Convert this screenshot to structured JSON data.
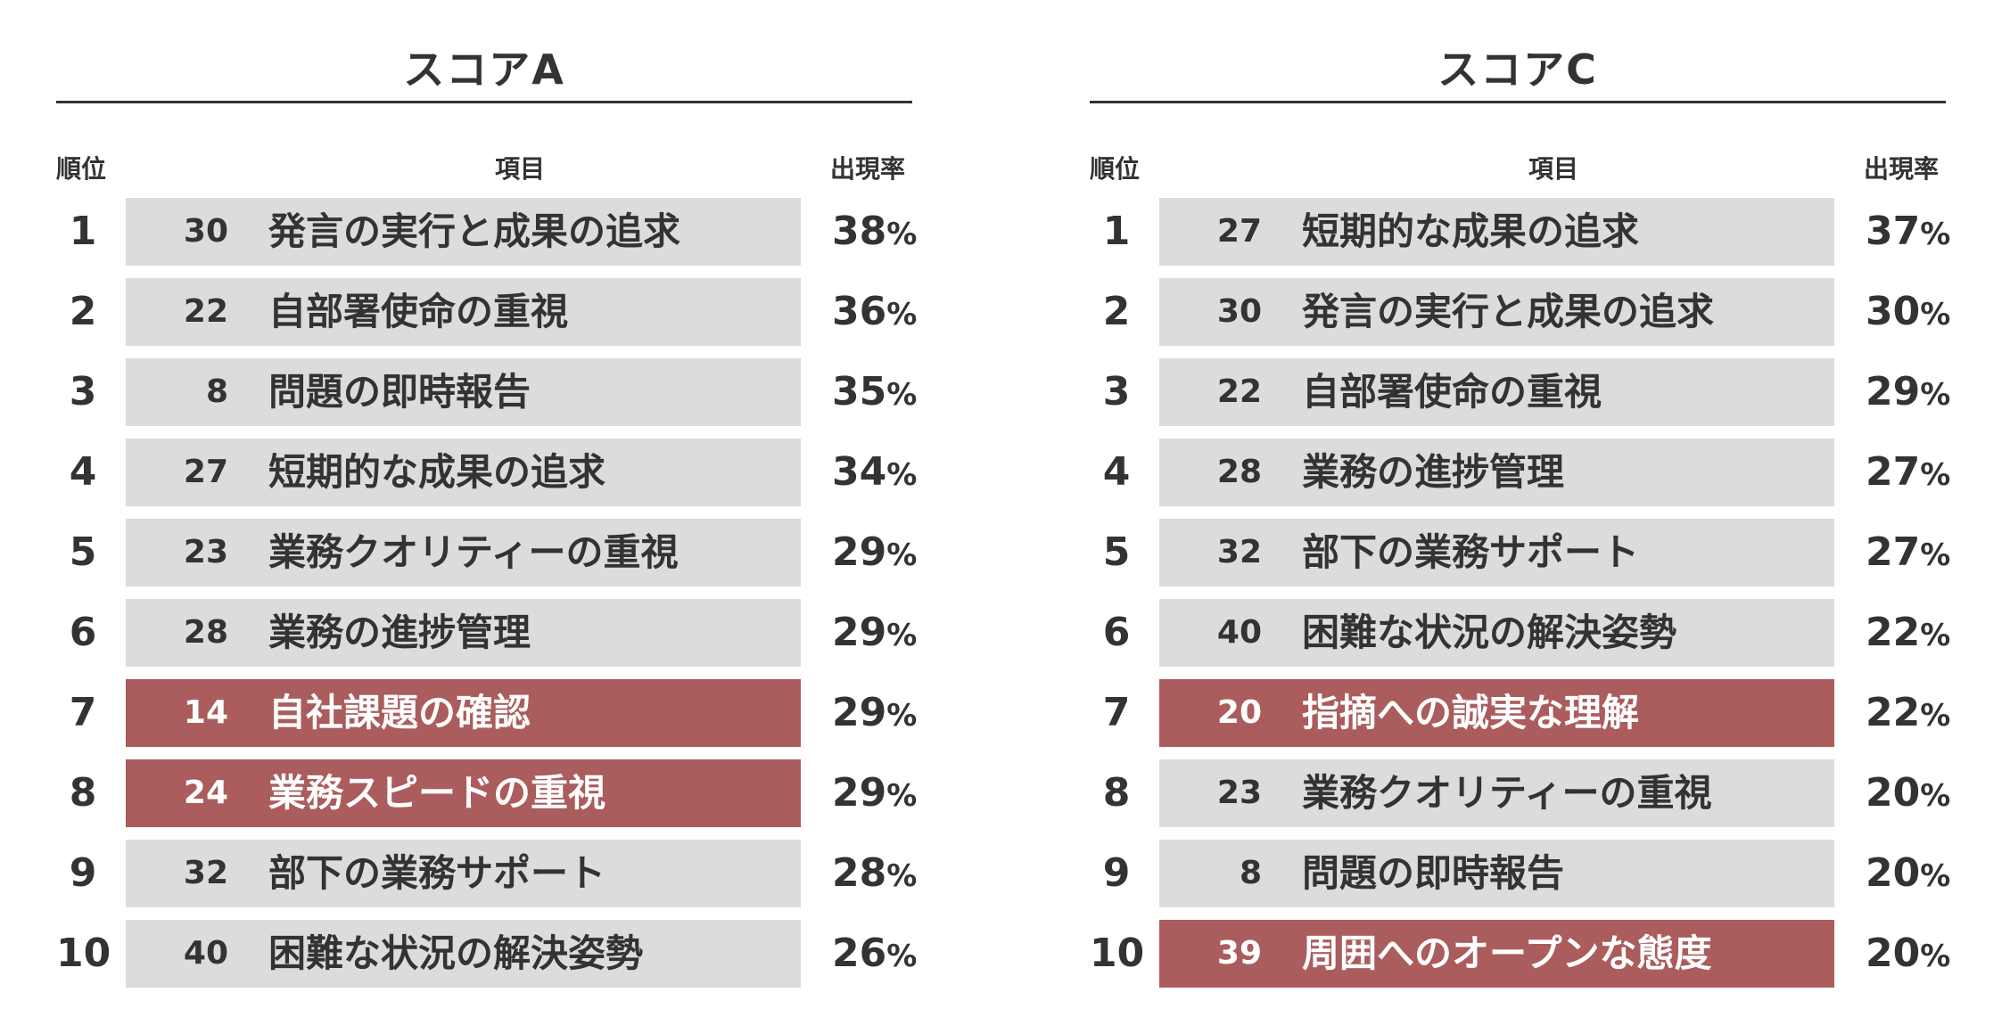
{
  "colors": {
    "bar": "#dcdcdc",
    "highlight": "#ab5c5c",
    "text": "#333333"
  },
  "panels": [
    {
      "title": "スコアA",
      "headers": {
        "rank": "順位",
        "item": "項目",
        "rate": "出現率"
      },
      "rows": [
        {
          "rank": "1",
          "num": "30",
          "label": "発言の実行と成果の追求",
          "rate": "38",
          "unit": "%",
          "highlight": false
        },
        {
          "rank": "2",
          "num": "22",
          "label": "自部署使命の重視",
          "rate": "36",
          "unit": "%",
          "highlight": false
        },
        {
          "rank": "3",
          "num": "8",
          "label": "問題の即時報告",
          "rate": "35",
          "unit": "%",
          "highlight": false
        },
        {
          "rank": "4",
          "num": "27",
          "label": "短期的な成果の追求",
          "rate": "34",
          "unit": "%",
          "highlight": false
        },
        {
          "rank": "5",
          "num": "23",
          "label": "業務クオリティーの重視",
          "rate": "29",
          "unit": "%",
          "highlight": false
        },
        {
          "rank": "6",
          "num": "28",
          "label": "業務の進捗管理",
          "rate": "29",
          "unit": "%",
          "highlight": false
        },
        {
          "rank": "7",
          "num": "14",
          "label": "自社課題の確認",
          "rate": "29",
          "unit": "%",
          "highlight": true
        },
        {
          "rank": "8",
          "num": "24",
          "label": "業務スピードの重視",
          "rate": "29",
          "unit": "%",
          "highlight": true
        },
        {
          "rank": "9",
          "num": "32",
          "label": "部下の業務サポート",
          "rate": "28",
          "unit": "%",
          "highlight": false
        },
        {
          "rank": "10",
          "num": "40",
          "label": "困難な状況の解決姿勢",
          "rate": "26",
          "unit": "%",
          "highlight": false
        }
      ]
    },
    {
      "title": "スコアC",
      "headers": {
        "rank": "順位",
        "item": "項目",
        "rate": "出現率"
      },
      "rows": [
        {
          "rank": "1",
          "num": "27",
          "label": "短期的な成果の追求",
          "rate": "37",
          "unit": "%",
          "highlight": false
        },
        {
          "rank": "2",
          "num": "30",
          "label": "発言の実行と成果の追求",
          "rate": "30",
          "unit": "%",
          "highlight": false
        },
        {
          "rank": "3",
          "num": "22",
          "label": "自部署使命の重視",
          "rate": "29",
          "unit": "%",
          "highlight": false
        },
        {
          "rank": "4",
          "num": "28",
          "label": "業務の進捗管理",
          "rate": "27",
          "unit": "%",
          "highlight": false
        },
        {
          "rank": "5",
          "num": "32",
          "label": "部下の業務サポート",
          "rate": "27",
          "unit": "%",
          "highlight": false
        },
        {
          "rank": "6",
          "num": "40",
          "label": "困難な状況の解決姿勢",
          "rate": "22",
          "unit": "%",
          "highlight": false
        },
        {
          "rank": "7",
          "num": "20",
          "label": "指摘への誠実な理解",
          "rate": "22",
          "unit": "%",
          "highlight": true
        },
        {
          "rank": "8",
          "num": "23",
          "label": "業務クオリティーの重視",
          "rate": "20",
          "unit": "%",
          "highlight": false
        },
        {
          "rank": "9",
          "num": "8",
          "label": "問題の即時報告",
          "rate": "20",
          "unit": "%",
          "highlight": false
        },
        {
          "rank": "10",
          "num": "39",
          "label": "周囲へのオープンな態度",
          "rate": "20",
          "unit": "%",
          "highlight": true
        }
      ]
    }
  ]
}
